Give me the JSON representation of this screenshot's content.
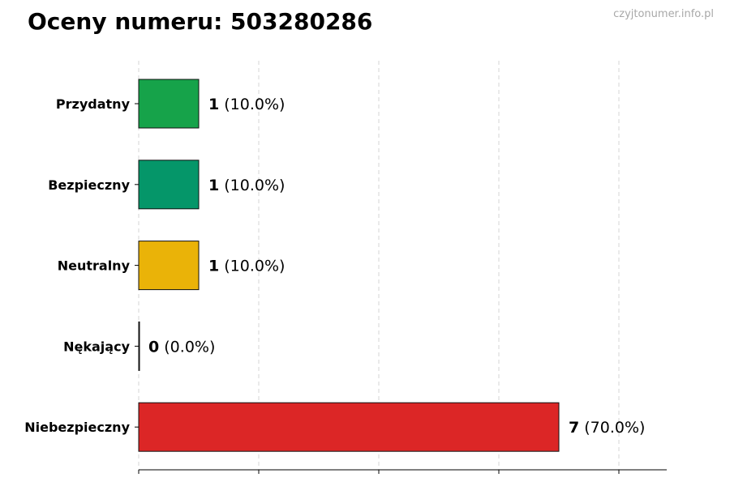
{
  "header": {
    "title": "Oceny numeru: 503280286",
    "watermark": "czyjtonumer.info.pl"
  },
  "chart_data": {
    "type": "bar",
    "orientation": "horizontal",
    "title": "Oceny numeru: 503280286",
    "xlabel": "",
    "ylabel": "",
    "categories": [
      "Przydatny",
      "Bezpieczny",
      "Neutralny",
      "Nękający",
      "Niebezpieczny"
    ],
    "values": [
      1,
      1,
      1,
      0,
      7
    ],
    "percent_labels": [
      "(10.0%)",
      "(10.0%)",
      "(10.0%)",
      "(0.0%)",
      "(70.0%)"
    ],
    "colors": [
      "#16a34a",
      "#059669",
      "#eab308",
      "#6b7280",
      "#dc2626"
    ],
    "xlim": [
      0,
      8.8
    ],
    "xticks": [
      0,
      2,
      4,
      6,
      8
    ],
    "grid": "vertical-dashed",
    "legend": "none"
  }
}
